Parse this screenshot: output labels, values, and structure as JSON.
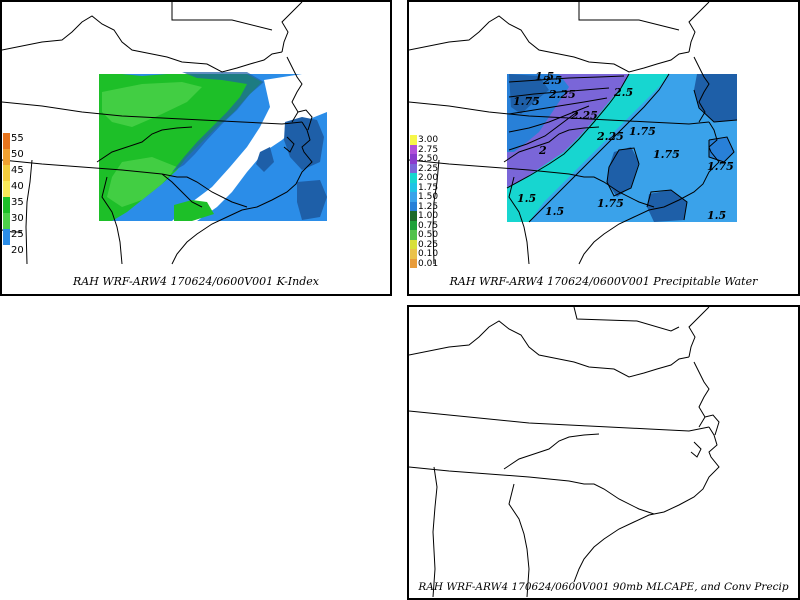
{
  "panels": {
    "kindex": {
      "caption": "RAH WRF-ARW4 170624/0600V001  K-Index",
      "legend": [
        {
          "label": "55",
          "color": "#e8741c"
        },
        {
          "label": "50",
          "color": "#f0a030"
        },
        {
          "label": "45",
          "color": "#f4cc3c"
        },
        {
          "label": "40",
          "color": "#f8e858"
        },
        {
          "label": "35",
          "color": "#1dbf28"
        },
        {
          "label": "30",
          "color": "#4cd24a"
        },
        {
          "label": "25",
          "color": "#2b8de8"
        },
        {
          "label": "20",
          "color": "#ffffff"
        }
      ]
    },
    "pwat": {
      "caption": "RAH WRF-ARW4 170624/0600V001  Precipitable Water",
      "legend": [
        {
          "label": "3.00",
          "color": "#f6f64a"
        },
        {
          "label": "2.75",
          "color": "#b050d8"
        },
        {
          "label": "2.50",
          "color": "#8a3ccc"
        },
        {
          "label": "2.25",
          "color": "#7a66d8"
        },
        {
          "label": "2.00",
          "color": "#17d6d0"
        },
        {
          "label": "1.75",
          "color": "#1fc3e6"
        },
        {
          "label": "1.50",
          "color": "#3aa2ea"
        },
        {
          "label": "1.25",
          "color": "#2880d8"
        },
        {
          "label": "1.00",
          "color": "#1d6b2a"
        },
        {
          "label": "0.75",
          "color": "#1ea23a"
        },
        {
          "label": "0.50",
          "color": "#52c24c"
        },
        {
          "label": "0.25",
          "color": "#d8e03a"
        },
        {
          "label": "0.10",
          "color": "#eac24a"
        },
        {
          "label": "0.01",
          "color": "#e89c3a"
        }
      ],
      "contour_labels": [
        "1.5",
        "1.75",
        "2.25",
        "2.5",
        "2.25",
        "2",
        "2.25",
        "1.5",
        "1.75",
        "1.75",
        "1.75",
        "1.75",
        "1.5",
        "1.5",
        "2.5"
      ]
    },
    "cape": {
      "caption": "RAH WRF-ARW4 170624/0600V001  90mb MLCAPE, and Conv Precip"
    }
  }
}
